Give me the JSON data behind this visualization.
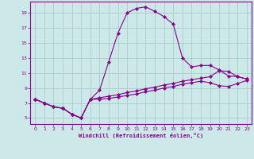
{
  "background_color": "#cce8e8",
  "grid_color": "#aacccc",
  "line_color": "#880088",
  "xlabel": "Windchill (Refroidissement éolien,°C)",
  "xlim": [
    -0.5,
    23.5
  ],
  "ylim": [
    4.2,
    20.5
  ],
  "xticks": [
    0,
    1,
    2,
    3,
    4,
    5,
    6,
    7,
    8,
    9,
    10,
    11,
    12,
    13,
    14,
    15,
    16,
    17,
    18,
    19,
    20,
    21,
    22,
    23
  ],
  "yticks": [
    5,
    7,
    9,
    11,
    13,
    15,
    17,
    19
  ],
  "curve1_x": [
    0,
    1,
    2,
    3,
    4,
    5,
    6,
    7,
    8,
    9,
    10,
    11,
    12,
    13,
    14,
    15,
    16,
    17,
    18,
    19,
    20,
    21,
    22,
    23
  ],
  "curve1_y": [
    7.5,
    7.0,
    6.5,
    6.3,
    5.5,
    5.0,
    7.5,
    8.7,
    12.5,
    16.3,
    19.0,
    19.6,
    19.8,
    19.2,
    18.5,
    17.5,
    13.0,
    11.8,
    12.0,
    12.0,
    11.4,
    10.6,
    10.5,
    10.2
  ],
  "curve2_x": [
    0,
    1,
    2,
    3,
    4,
    5,
    6,
    7,
    8,
    9,
    10,
    11,
    12,
    13,
    14,
    15,
    16,
    17,
    18,
    19,
    20,
    21,
    22,
    23
  ],
  "curve2_y": [
    7.5,
    7.0,
    6.5,
    6.3,
    5.5,
    5.0,
    7.5,
    7.7,
    7.9,
    8.1,
    8.4,
    8.6,
    8.9,
    9.1,
    9.4,
    9.6,
    9.9,
    10.1,
    10.3,
    10.5,
    11.3,
    11.2,
    10.5,
    10.2
  ],
  "curve3_x": [
    0,
    1,
    2,
    3,
    4,
    5,
    6,
    7,
    8,
    9,
    10,
    11,
    12,
    13,
    14,
    15,
    16,
    17,
    18,
    19,
    20,
    21,
    22,
    23
  ],
  "curve3_y": [
    7.5,
    7.0,
    6.5,
    6.3,
    5.5,
    5.0,
    7.5,
    7.5,
    7.6,
    7.8,
    8.0,
    8.2,
    8.5,
    8.7,
    9.0,
    9.2,
    9.5,
    9.7,
    9.9,
    9.7,
    9.3,
    9.2,
    9.6,
    10.0
  ]
}
